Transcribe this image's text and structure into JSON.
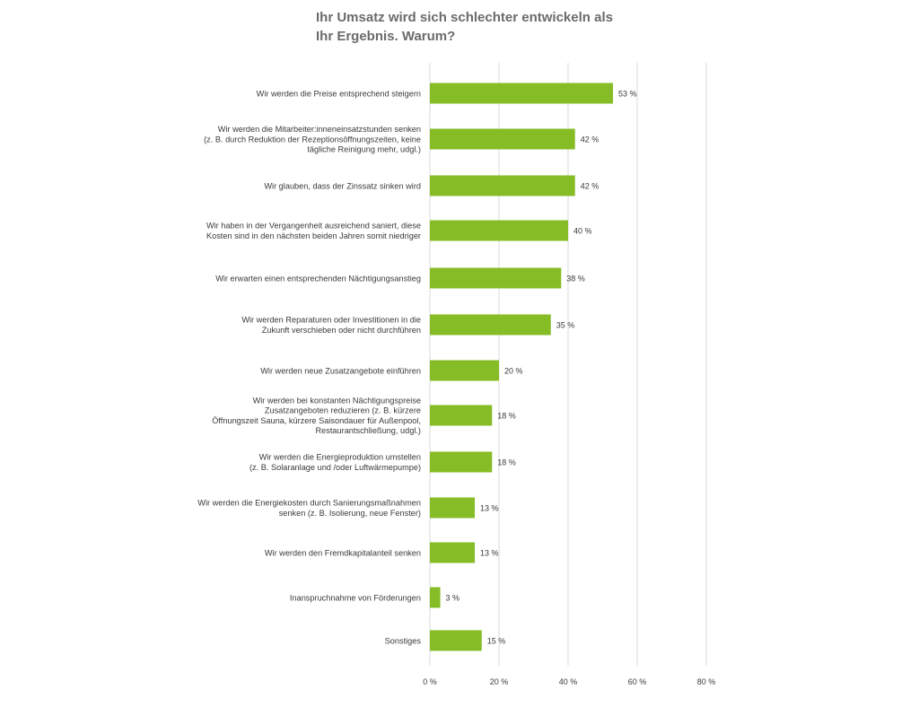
{
  "chart_data": {
    "type": "bar",
    "orientation": "horizontal",
    "title_lines": [
      "Ihr Umsatz wird sich schlechter entwickeln als",
      "Ihr Ergebnis. Warum?"
    ],
    "categories": [
      [
        "Wir werden die Preise entsprechend steigern"
      ],
      [
        "Wir werden die Mitarbeiter:inneneinsatzstunden senken",
        "(z. B. durch Reduktion der Rezeptionsöffnungszeiten, keine",
        "tägliche Reinigung mehr, udgl.)"
      ],
      [
        "Wir glauben, dass der Zinssatz sinken wird"
      ],
      [
        "Wir haben in der Vergangenheit ausreichend saniert, diese",
        "Kosten sind in den nächsten beiden Jahren somit niedriger"
      ],
      [
        "Wir erwarten einen entsprechenden Nächtigungsanstieg"
      ],
      [
        "Wir werden Reparaturen oder Investitionen in die",
        "Zukunft verschieben oder nicht durchführen"
      ],
      [
        "Wir werden neue Zusatzangebote einführen"
      ],
      [
        "Wir werden bei konstanten Nächtigungspreise",
        "Zusatzangeboten reduzieren (z. B. kürzere",
        "Öffnungszeit Sauna, kürzere Saisondauer für Außenpool,",
        "Restaurantschließung, udgl.)"
      ],
      [
        "Wir werden die Energieproduktion umstellen",
        "(z. B. Solaranlage und /oder Luftwärmepumpe)"
      ],
      [
        "Wir werden die Energiekosten durch Sanierungsmaßnahmen",
        "senken (z. B. Isolierung, neue Fenster)"
      ],
      [
        "Wir werden den Fremdkapitalanteil senken"
      ],
      [
        "Inanspruchnahme von Förderungen"
      ],
      [
        "Sonstiges"
      ]
    ],
    "values": [
      53,
      42,
      42,
      40,
      38,
      35,
      20,
      18,
      18,
      13,
      13,
      3,
      15
    ],
    "value_labels": [
      "53 %",
      "42 %",
      "42 %",
      "40 %",
      "38 %",
      "35 %",
      "20 %",
      "18 %",
      "18 %",
      "13 %",
      "13 %",
      "3 %",
      "15 %"
    ],
    "xlim": [
      0,
      80
    ],
    "xticks": [
      0,
      20,
      40,
      60,
      80
    ],
    "xtick_labels": [
      "0 %",
      "20 %",
      "40 %",
      "60 %",
      "80 %"
    ],
    "grid": "vertical",
    "bar_color": "#86bc25",
    "grid_color": "#d9d9d9",
    "text_color": "#3a3a3a"
  }
}
